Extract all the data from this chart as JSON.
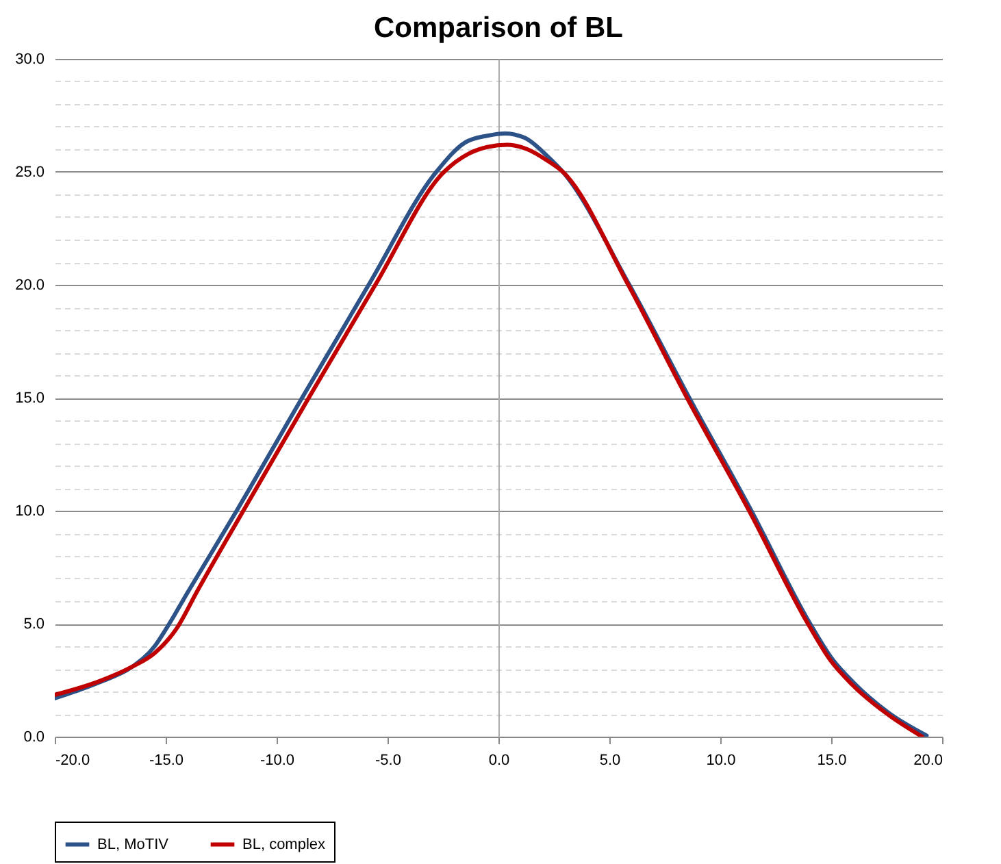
{
  "chart_data": {
    "type": "line",
    "title": "Comparison of BL",
    "series": [
      {
        "name": "BL, MoTIV",
        "color": "#2c5287",
        "x": [
          -20,
          -18,
          -16.5,
          -15.5,
          -14.9,
          -14,
          -11.8,
          -8.85,
          -5.85,
          -2.8,
          -1.5,
          -0.5,
          0.3,
          1.2,
          2.2,
          2.9,
          5.9,
          8.6,
          11.4,
          14.05,
          15.0,
          16.0,
          17.6,
          19.3
        ],
        "values": [
          1.7,
          2.4,
          3.1,
          4.0,
          4.9,
          6.4,
          10,
          15,
          20,
          25,
          26.3,
          26.6,
          26.7,
          26.5,
          25.7,
          25.0,
          20,
          15,
          10,
          5,
          3.5,
          2.4,
          1.05,
          0.05
        ]
      },
      {
        "name": "BL, complex",
        "color": "#c00000",
        "x": [
          -20,
          -18,
          -16.5,
          -15.5,
          -14.5,
          -13.6,
          -11.5,
          -8.55,
          -5.55,
          -2.45,
          -1.35,
          -0.5,
          0.4,
          1.3,
          2.2,
          2.9,
          5.85,
          8.5,
          11.3,
          13.95,
          14.95,
          15.95,
          17.6,
          19.1
        ],
        "values": [
          1.85,
          2.45,
          3.1,
          3.7,
          4.8,
          6.4,
          10,
          15,
          20,
          25,
          25.8,
          26.1,
          26.2,
          26.0,
          25.5,
          25.0,
          20,
          15,
          10,
          5,
          3.4,
          2.3,
          0.95,
          0
        ]
      }
    ],
    "xlim": [
      -20,
      20
    ],
    "xticks": [
      {
        "value": -20,
        "label": "-20.0"
      },
      {
        "value": -15,
        "label": "-15.0"
      },
      {
        "value": -10,
        "label": "-10.0"
      },
      {
        "value": -5,
        "label": "-5.0"
      },
      {
        "value": 0,
        "label": "0.0"
      },
      {
        "value": 5,
        "label": "5.0"
      },
      {
        "value": 10,
        "label": "10.0"
      },
      {
        "value": 15,
        "label": "15.0"
      },
      {
        "value": 20,
        "label": "20.0"
      }
    ],
    "ylim": [
      0,
      30
    ],
    "yticks": [
      {
        "value": 0,
        "label": "0.0"
      },
      {
        "value": 1,
        "label": null
      },
      {
        "value": 2,
        "label": null
      },
      {
        "value": 3,
        "label": null
      },
      {
        "value": 4,
        "label": null
      },
      {
        "value": 5,
        "label": "5.0"
      },
      {
        "value": 6,
        "label": null
      },
      {
        "value": 7,
        "label": null
      },
      {
        "value": 8,
        "label": null
      },
      {
        "value": 9,
        "label": null
      },
      {
        "value": 10,
        "label": "10.0"
      },
      {
        "value": 11,
        "label": null
      },
      {
        "value": 12,
        "label": null
      },
      {
        "value": 13,
        "label": null
      },
      {
        "value": 14,
        "label": null
      },
      {
        "value": 15,
        "label": "15.0"
      },
      {
        "value": 16,
        "label": null
      },
      {
        "value": 17,
        "label": null
      },
      {
        "value": 18,
        "label": null
      },
      {
        "value": 19,
        "label": null
      },
      {
        "value": 20,
        "label": "20.0"
      },
      {
        "value": 21,
        "label": null
      },
      {
        "value": 22,
        "label": null
      },
      {
        "value": 23,
        "label": null
      },
      {
        "value": 24,
        "label": null
      },
      {
        "value": 25,
        "label": "25.0"
      },
      {
        "value": 26,
        "label": null
      },
      {
        "value": 27,
        "label": null
      },
      {
        "value": 28,
        "label": null
      },
      {
        "value": 29,
        "label": null
      },
      {
        "value": 30,
        "label": "30.0"
      }
    ],
    "grid": "y",
    "legend": "bottom",
    "marker": "none",
    "line_style": "solid"
  }
}
